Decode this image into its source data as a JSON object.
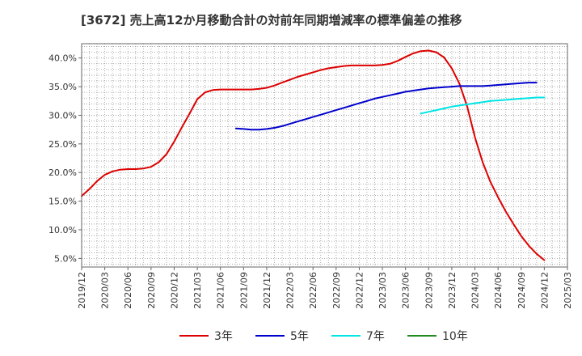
{
  "chart_data": {
    "type": "line",
    "title": "[3672]  売上高12か月移動合計の対前年同期増減率の標準偏差の推移",
    "xlabel": "",
    "ylabel": "",
    "ylim": [
      3.5,
      42.5
    ],
    "yticks": [
      5,
      10,
      15,
      20,
      25,
      30,
      35,
      40
    ],
    "ytick_labels": [
      "5.0%",
      "10.0%",
      "15.0%",
      "20.0%",
      "25.0%",
      "30.0%",
      "35.0%",
      "40.0%"
    ],
    "xticks": [
      "2019/12",
      "2020/03",
      "2020/06",
      "2020/09",
      "2020/12",
      "2021/03",
      "2021/06",
      "2021/09",
      "2021/12",
      "2022/03",
      "2022/06",
      "2022/09",
      "2022/12",
      "2023/03",
      "2023/06",
      "2023/09",
      "2023/12",
      "2024/03",
      "2024/06",
      "2024/09",
      "2024/12",
      "2025/03"
    ],
    "grid": true,
    "legend_position": "bottom",
    "series": [
      {
        "name": "3年",
        "color": "#dd0000",
        "start": "2019/12",
        "values": [
          15.9,
          17.1,
          18.5,
          19.6,
          20.2,
          20.5,
          20.6,
          20.6,
          20.7,
          21.0,
          21.8,
          23.2,
          25.4,
          27.9,
          30.3,
          32.8,
          34.0,
          34.4,
          34.5,
          34.5,
          34.5,
          34.5,
          34.5,
          34.6,
          34.8,
          35.2,
          35.7,
          36.2,
          36.7,
          37.1,
          37.5,
          37.9,
          38.2,
          38.4,
          38.6,
          38.7,
          38.7,
          38.7,
          38.7,
          38.8,
          39.0,
          39.5,
          40.2,
          40.8,
          41.2,
          41.3,
          41.0,
          40.1,
          38.2,
          35.5,
          31.5,
          26.2,
          21.8,
          18.4,
          15.7,
          13.2,
          11.0,
          8.9,
          7.2,
          5.8,
          4.7
        ]
      },
      {
        "name": "5年",
        "color": "#0000cc",
        "start": "2021/08",
        "values": [
          27.7,
          27.6,
          27.5,
          27.5,
          27.6,
          27.8,
          28.1,
          28.5,
          28.9,
          29.3,
          29.7,
          30.1,
          30.5,
          30.9,
          31.3,
          31.7,
          32.1,
          32.5,
          32.9,
          33.2,
          33.5,
          33.8,
          34.1,
          34.3,
          34.5,
          34.7,
          34.8,
          34.9,
          35.0,
          35.1,
          35.1,
          35.1,
          35.1,
          35.2,
          35.3,
          35.4,
          35.5,
          35.6,
          35.7,
          35.7
        ]
      },
      {
        "name": "7年",
        "color": "#00e5e5",
        "start": "2023/08",
        "values": [
          30.3,
          30.6,
          30.9,
          31.2,
          31.5,
          31.7,
          31.9,
          32.1,
          32.3,
          32.5,
          32.6,
          32.7,
          32.8,
          32.9,
          33.0,
          33.1,
          33.1
        ]
      },
      {
        "name": "10年",
        "color": "#228b22",
        "start": "",
        "values": []
      }
    ]
  }
}
